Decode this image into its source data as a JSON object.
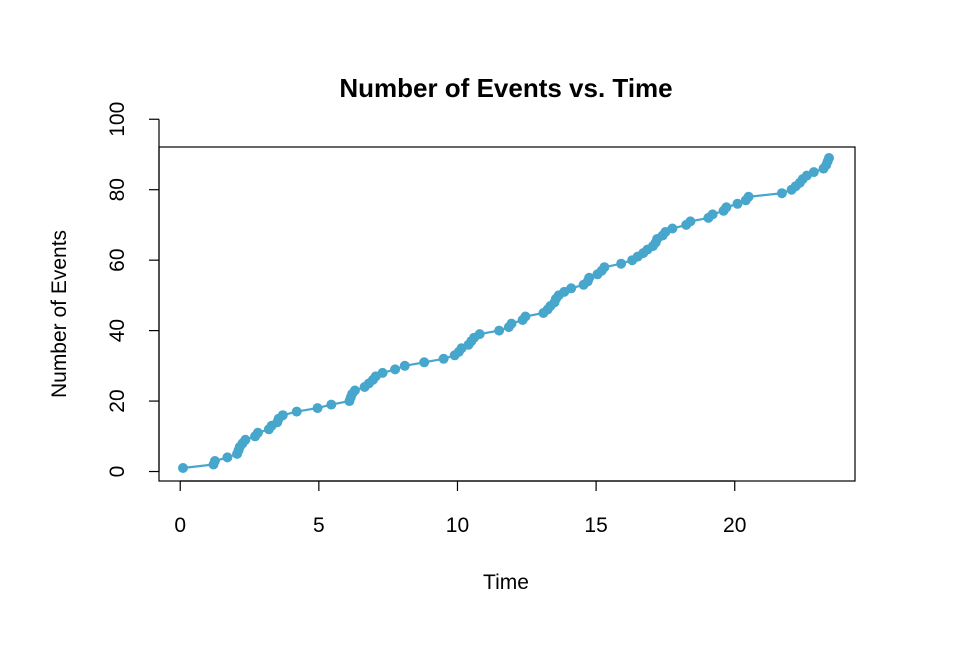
{
  "chart_data": {
    "type": "line",
    "title": "Number of Events vs. Time",
    "xlabel": "Time",
    "ylabel": "Number of Events",
    "xlim": [
      0,
      23.6
    ],
    "ylim": [
      0,
      100
    ],
    "x_ticks": [
      0,
      5,
      10,
      15,
      20
    ],
    "y_ticks": [
      0,
      20,
      40,
      60,
      80,
      100
    ],
    "grid": false,
    "legend": "none",
    "series_color": "#46a6cc",
    "markers": true,
    "x": [
      0.1,
      1.2,
      1.25,
      1.7,
      2.05,
      2.1,
      2.15,
      2.25,
      2.35,
      2.7,
      2.8,
      3.2,
      3.3,
      3.5,
      3.55,
      3.7,
      4.2,
      4.95,
      5.45,
      6.1,
      6.15,
      6.2,
      6.3,
      6.65,
      6.8,
      6.95,
      7.05,
      7.3,
      7.75,
      8.1,
      8.8,
      9.5,
      9.9,
      10.05,
      10.15,
      10.4,
      10.5,
      10.6,
      10.8,
      11.5,
      11.85,
      11.95,
      12.35,
      12.45,
      13.1,
      13.25,
      13.35,
      13.5,
      13.55,
      13.65,
      13.85,
      14.1,
      14.55,
      14.7,
      14.75,
      15.05,
      15.2,
      15.3,
      15.9,
      16.3,
      16.5,
      16.7,
      16.85,
      17.05,
      17.15,
      17.2,
      17.4,
      17.5,
      17.75,
      18.25,
      18.4,
      19.05,
      19.2,
      19.6,
      19.7,
      20.1,
      20.4,
      20.5,
      21.7,
      22.05,
      22.2,
      22.35,
      22.45,
      22.6,
      22.85,
      23.2,
      23.3,
      23.35,
      23.4
    ],
    "values": [
      1,
      2,
      3,
      4,
      5,
      6,
      7,
      8,
      9,
      10,
      11,
      12,
      13,
      14,
      15,
      16,
      17,
      18,
      19,
      20,
      21,
      22,
      23,
      24,
      25,
      26,
      27,
      28,
      29,
      30,
      31,
      32,
      33,
      34,
      35,
      36,
      37,
      38,
      39,
      40,
      41,
      42,
      43,
      44,
      45,
      46,
      47,
      48,
      49,
      50,
      51,
      52,
      53,
      54,
      55,
      56,
      57,
      58,
      59,
      60,
      61,
      62,
      63,
      64,
      65,
      66,
      67,
      68,
      69,
      70,
      71,
      72,
      73,
      74,
      75,
      76,
      77,
      78,
      79,
      80,
      81,
      82,
      83,
      84,
      85,
      86,
      87,
      88,
      89
    ]
  }
}
